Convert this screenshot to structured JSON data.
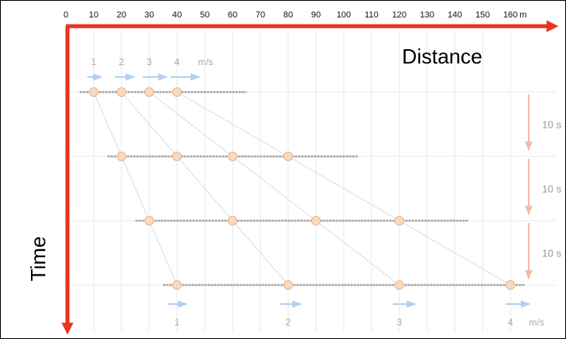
{
  "distance_axis": {
    "ticks": [
      "0",
      "10",
      "20",
      "30",
      "40",
      "50",
      "60",
      "70",
      "80",
      "90",
      "100",
      "110",
      "120",
      "130",
      "140",
      "150",
      "160"
    ],
    "unit": "m",
    "label": "Distance"
  },
  "time_axis": {
    "label": "Time"
  },
  "top_speeds": {
    "labels": [
      "1",
      "2",
      "3",
      "4"
    ],
    "unit": "m/s"
  },
  "bottom_speeds": {
    "labels": [
      "1",
      "2",
      "3",
      "4"
    ],
    "unit": "m/s"
  },
  "interval_labels": [
    "10 s",
    "10 s",
    "10 s"
  ],
  "rows": [
    {
      "time_s": 0,
      "positions_m": [
        10,
        20,
        30,
        40
      ],
      "line_range_m": [
        5,
        65
      ]
    },
    {
      "time_s": 10,
      "positions_m": [
        20,
        40,
        60,
        80
      ],
      "line_range_m": [
        15,
        105
      ]
    },
    {
      "time_s": 20,
      "positions_m": [
        30,
        60,
        90,
        120
      ],
      "line_range_m": [
        25,
        145
      ]
    },
    {
      "time_s": 30,
      "positions_m": [
        40,
        80,
        120,
        160
      ],
      "line_range_m": [
        35,
        165
      ]
    }
  ],
  "colors": {
    "axis": "#e8341c",
    "ball_fill": "#fbd9bd",
    "ball_stroke": "#e9b48c",
    "track": "#a6a6a6",
    "speed_arrow": "#b6cdf4",
    "interval_arrow": "#f6b9ad",
    "grid": "#e9e9e9",
    "path": "#dcdcdc"
  }
}
